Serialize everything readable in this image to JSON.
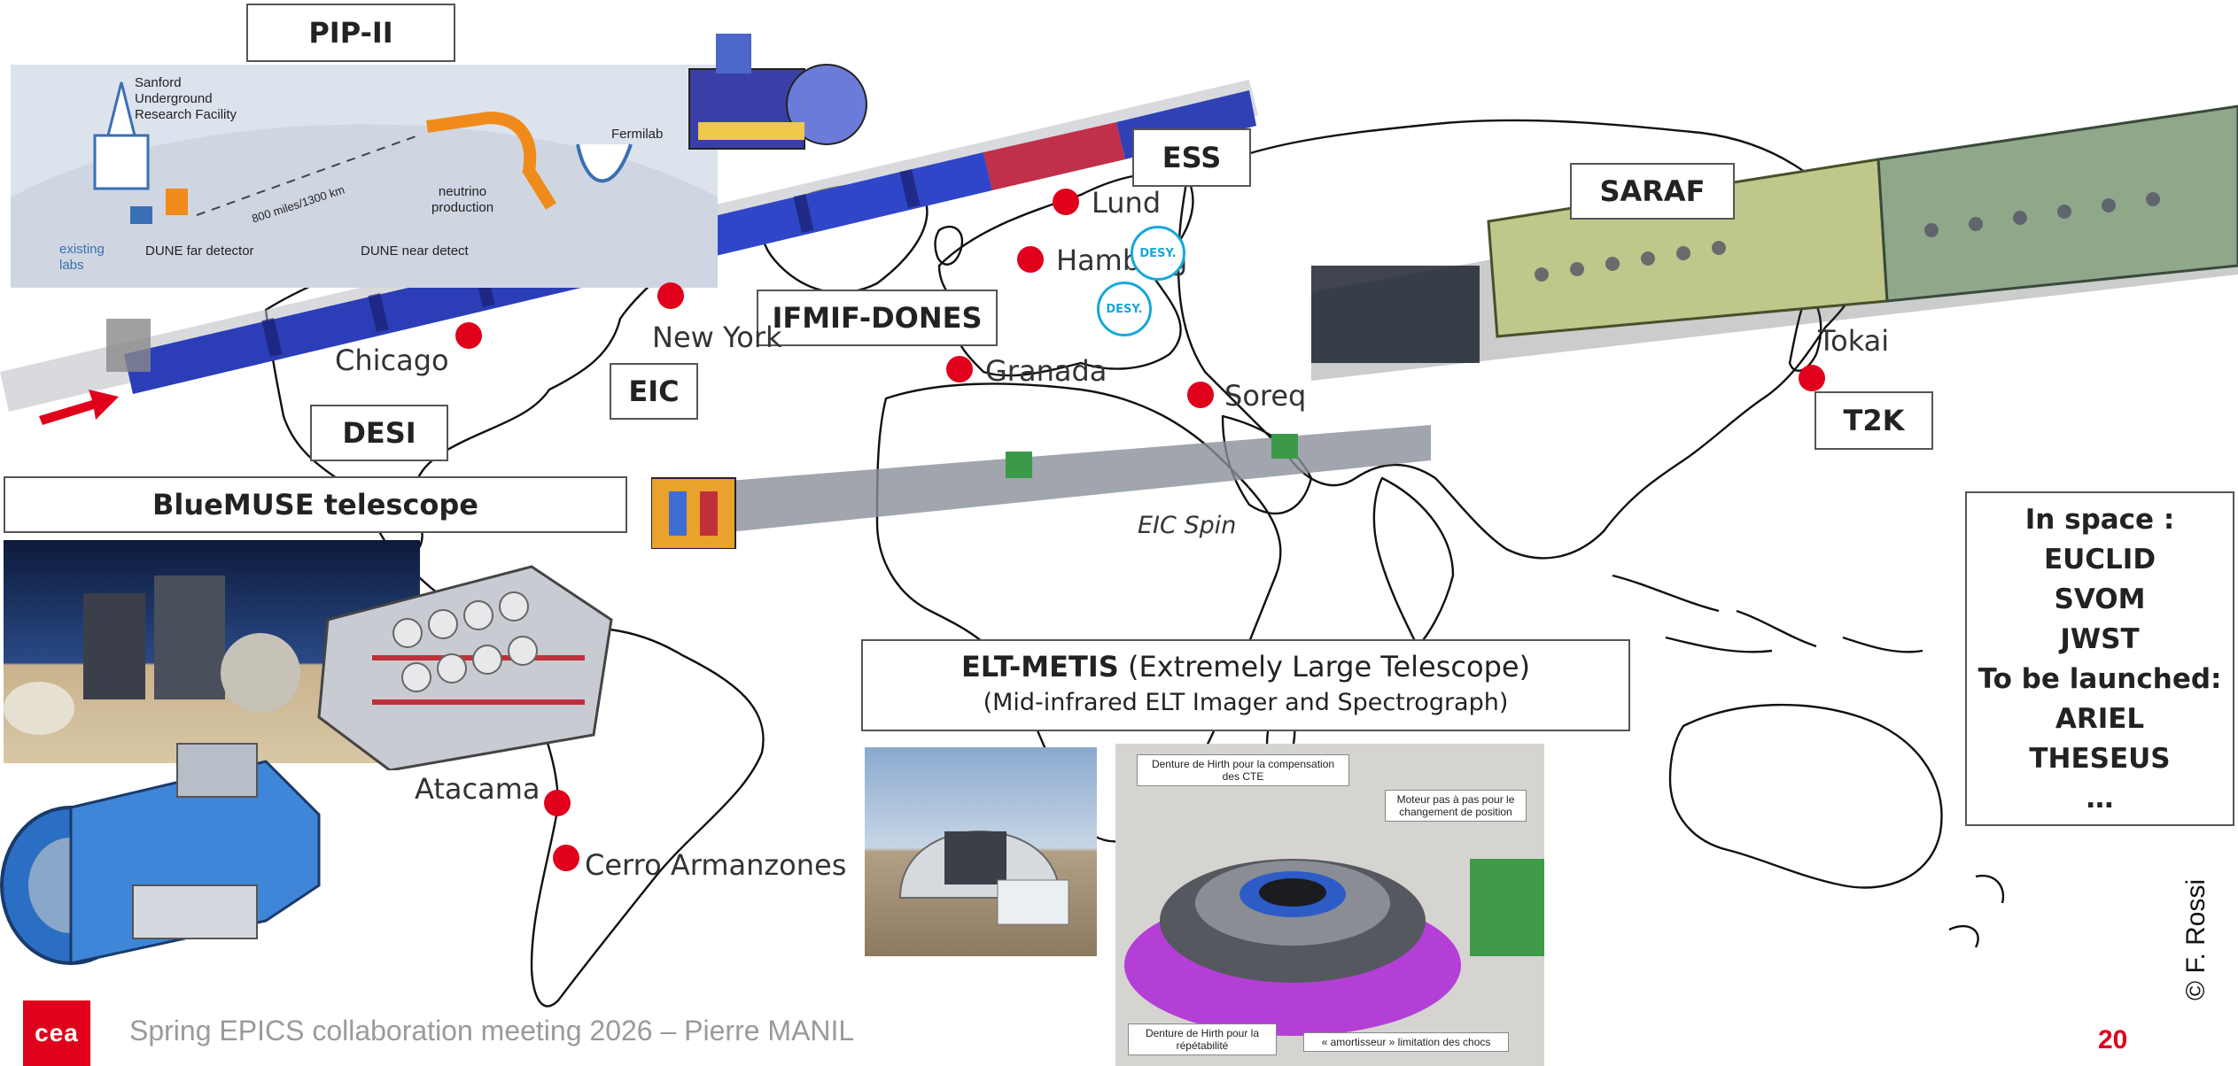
{
  "slide": {
    "labels": {
      "pip2": "PIP-II",
      "ess": "ESS",
      "saraf": "SARAF",
      "ifmif": "IFMIF-DONES",
      "eic": "EIC",
      "desi": "DESI",
      "t2k": "T2K",
      "bluemuse": "BlueMUSE telescope"
    },
    "cities": {
      "lund": "Lund",
      "hamburg": "Hamburg",
      "chicago": "Chicago",
      "newyork": "New York",
      "granada": "Granada",
      "soreq": "Soreq",
      "tokai": "Tokai",
      "atacama": "Atacama",
      "cerro": "Cerro Armanzones"
    },
    "eic_spin": "EIC Spin",
    "desy_logo": "DESY.",
    "elt": {
      "name": "ELT-METIS",
      "desc": " (Extremely Large Telescope)",
      "line2": "(Mid-infrared ELT Imager and Spectrograph)"
    },
    "space": {
      "l1": "In space :",
      "l2": "EUCLID",
      "l3": "SVOM",
      "l4": "JWST",
      "l5": "To be launched:",
      "l6": "ARIEL",
      "l7": "THESEUS",
      "l8": "…"
    },
    "pip_inset": {
      "sanford": "Sanford",
      "underground": "Underground",
      "research": "Research Facility",
      "fermilab": "Fermilab",
      "neutrino1": "neutrino",
      "neutrino2": "production",
      "distance": "800 miles/1300 km",
      "existing1": "existing",
      "existing2": "labs",
      "far_detector": "DUNE far detector",
      "near_detector": "DUNE near detect"
    },
    "metis_notes": {
      "n1": "Denture de Hirth pour la compensation des CTE",
      "n2": "Moteur pas à pas pour le changement de position",
      "n3": "Denture de Hirth pour la répétabilité",
      "n4": "« amortisseur » limitation des chocs"
    },
    "footer": "Spring EPICS collaboration meeting 2026 – Pierre MANIL",
    "page": "20",
    "credit": "© F. Rossi",
    "logo": "cea"
  }
}
